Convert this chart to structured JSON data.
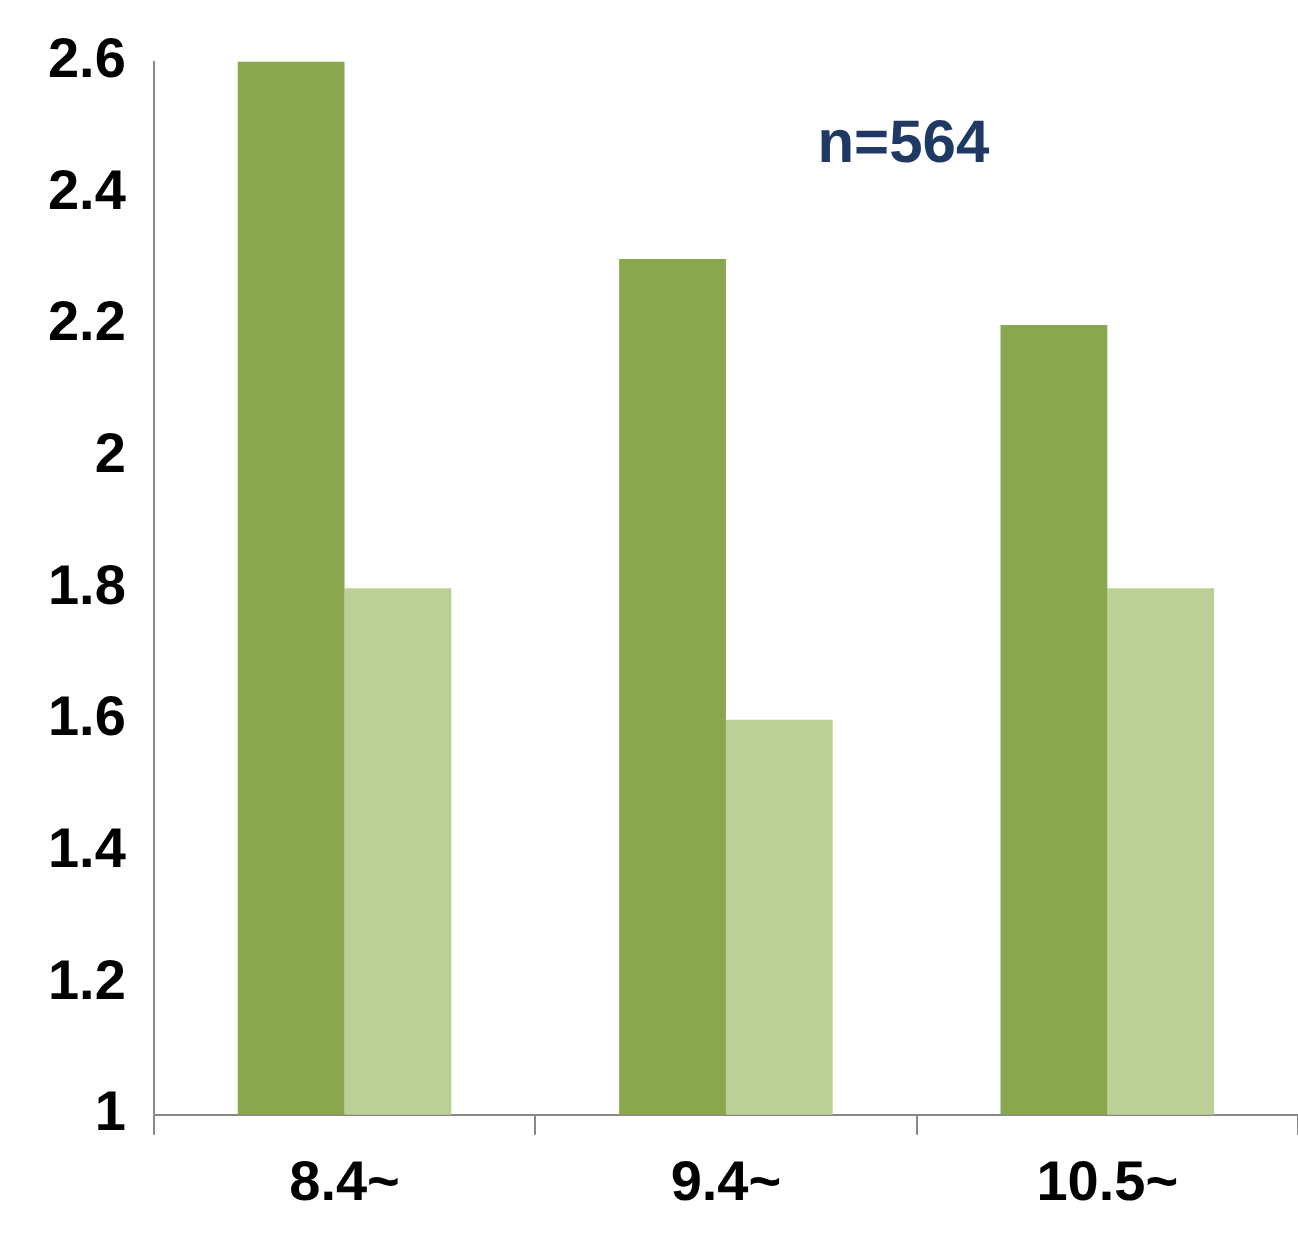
{
  "chart_data": {
    "type": "bar",
    "categories": [
      "8.4~",
      "9.4~",
      "10.5~"
    ],
    "series": [
      {
        "color": "#8aa74f",
        "values": [
          2.6,
          2.3,
          2.2
        ]
      },
      {
        "color": "#bccf96",
        "values": [
          1.8,
          1.6,
          1.8
        ]
      }
    ],
    "ylim": [
      1,
      2.6
    ],
    "yticks": [
      1,
      1.2,
      1.4,
      1.6,
      1.8,
      2,
      2.2,
      2.4,
      2.6
    ],
    "grid": false,
    "legend": false,
    "annotations": [
      "n=564"
    ]
  }
}
